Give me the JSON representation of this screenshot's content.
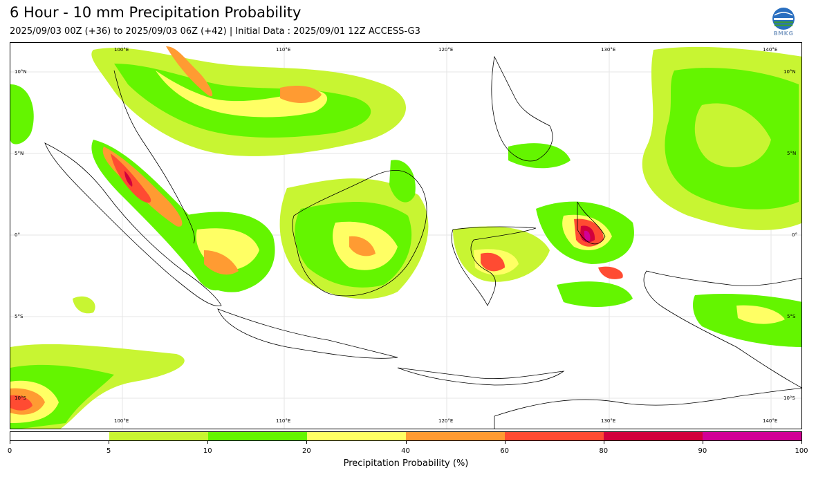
{
  "header": {
    "title": "6 Hour - 10 mm Precipitation Probability",
    "subtitle": "2025/09/03 00Z (+36) to 2025/09/03 06Z (+42) | Initial Data : 2025/09/01 12Z ACCESS-G3",
    "logo_text": "BMKG"
  },
  "map": {
    "lon_labels": [
      "100°E",
      "110°E",
      "120°E",
      "130°E",
      "140°E"
    ],
    "lat_labels": [
      "10°N",
      "5°N",
      "0°",
      "5°S",
      "10°S"
    ]
  },
  "colorbar": {
    "label": "Precipitation Probability (%)",
    "ticks": [
      "0",
      "5",
      "10",
      "20",
      "40",
      "60",
      "80",
      "90",
      "100"
    ],
    "colors": [
      "#ffffff",
      "#c8f532",
      "#64f500",
      "#ffff64",
      "#ff9b32",
      "#ff4b32",
      "#d2003c",
      "#d20096"
    ]
  }
}
